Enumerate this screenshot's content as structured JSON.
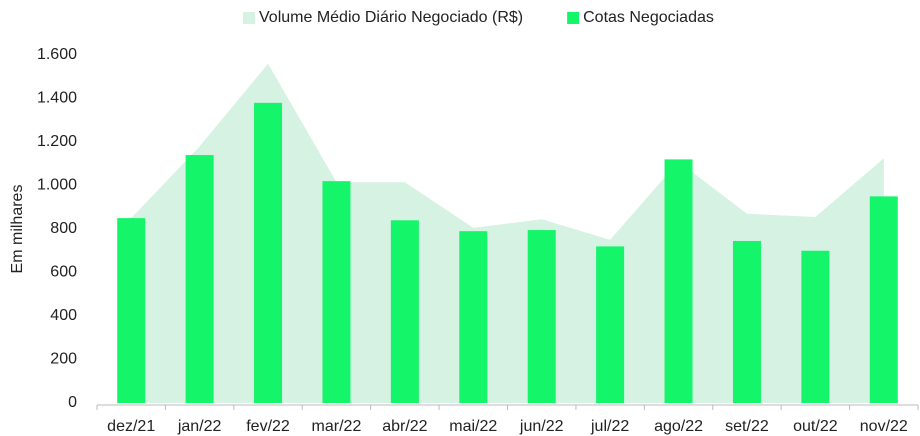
{
  "chart_data": {
    "type": "combo",
    "y_axis_label": "Em milhares",
    "categories": [
      "dez/21",
      "jan/22",
      "fev/22",
      "mar/22",
      "abr/22",
      "mai/22",
      "jun/22",
      "jul/22",
      "ago/22",
      "set/22",
      "out/22",
      "nov/22"
    ],
    "series": [
      {
        "name": "Volume Médio Diário Negociado (R$)",
        "type": "area",
        "color": "#d5f2e3",
        "values": [
          850,
          1180,
          1560,
          1015,
          1015,
          805,
          845,
          750,
          1110,
          870,
          855,
          1125
        ]
      },
      {
        "name": "Cotas Negociadas",
        "type": "bar",
        "color": "#14f56a",
        "values": [
          850,
          1140,
          1380,
          1020,
          840,
          790,
          795,
          720,
          1120,
          745,
          700,
          950
        ]
      }
    ],
    "ylim": [
      0,
      1600
    ],
    "yticks": [
      0,
      200,
      400,
      600,
      800,
      {
        "value": 1000,
        "label": "1.000"
      },
      {
        "value": 1200,
        "label": "1.200"
      },
      {
        "value": 1400,
        "label": "1.400"
      },
      {
        "value": 1600,
        "label": "1.600"
      }
    ],
    "legend": "top"
  }
}
